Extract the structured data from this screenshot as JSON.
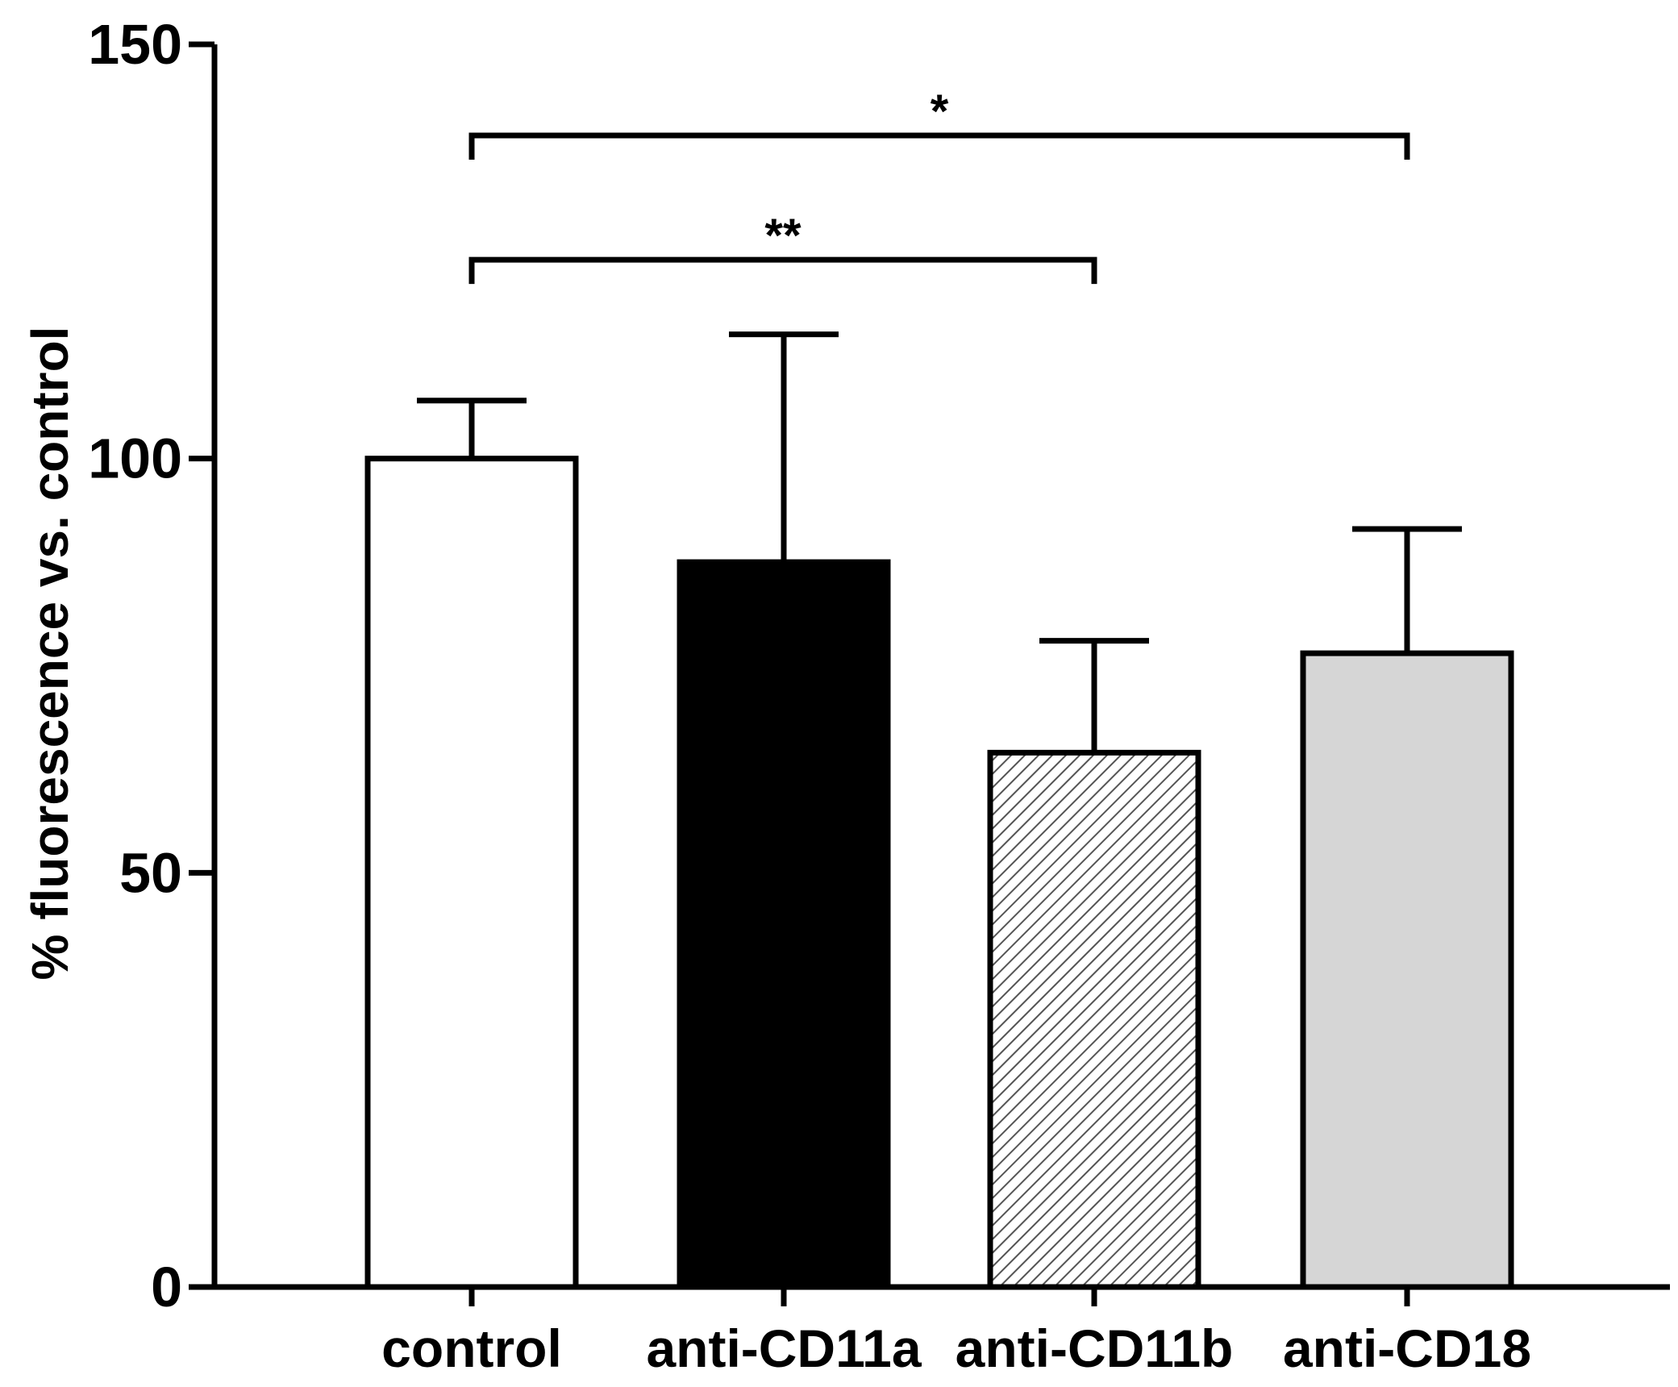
{
  "chart_data": {
    "type": "bar",
    "title": "",
    "xlabel": "",
    "ylabel": "% fluorescence vs. control",
    "ylim": [
      0,
      150
    ],
    "yticks": [
      0,
      50,
      100,
      150
    ],
    "categories": [
      "control",
      "anti-CD11a",
      "anti-CD11b",
      "anti-CD18"
    ],
    "values": [
      100,
      87.5,
      64.5,
      76.5
    ],
    "errors": [
      7,
      27.5,
      13.5,
      15
    ],
    "fills": [
      "white",
      "black",
      "hatched",
      "light-gray"
    ],
    "colors": {
      "axis": "#000000",
      "white": "#ffffff",
      "black": "#000000",
      "light-gray": "#d6d6d6",
      "hatch": "#555555"
    },
    "significance": [
      {
        "from": 0,
        "to": 3,
        "label": "*",
        "y": 139
      },
      {
        "from": 0,
        "to": 2,
        "label": "**",
        "y": 124
      }
    ]
  }
}
